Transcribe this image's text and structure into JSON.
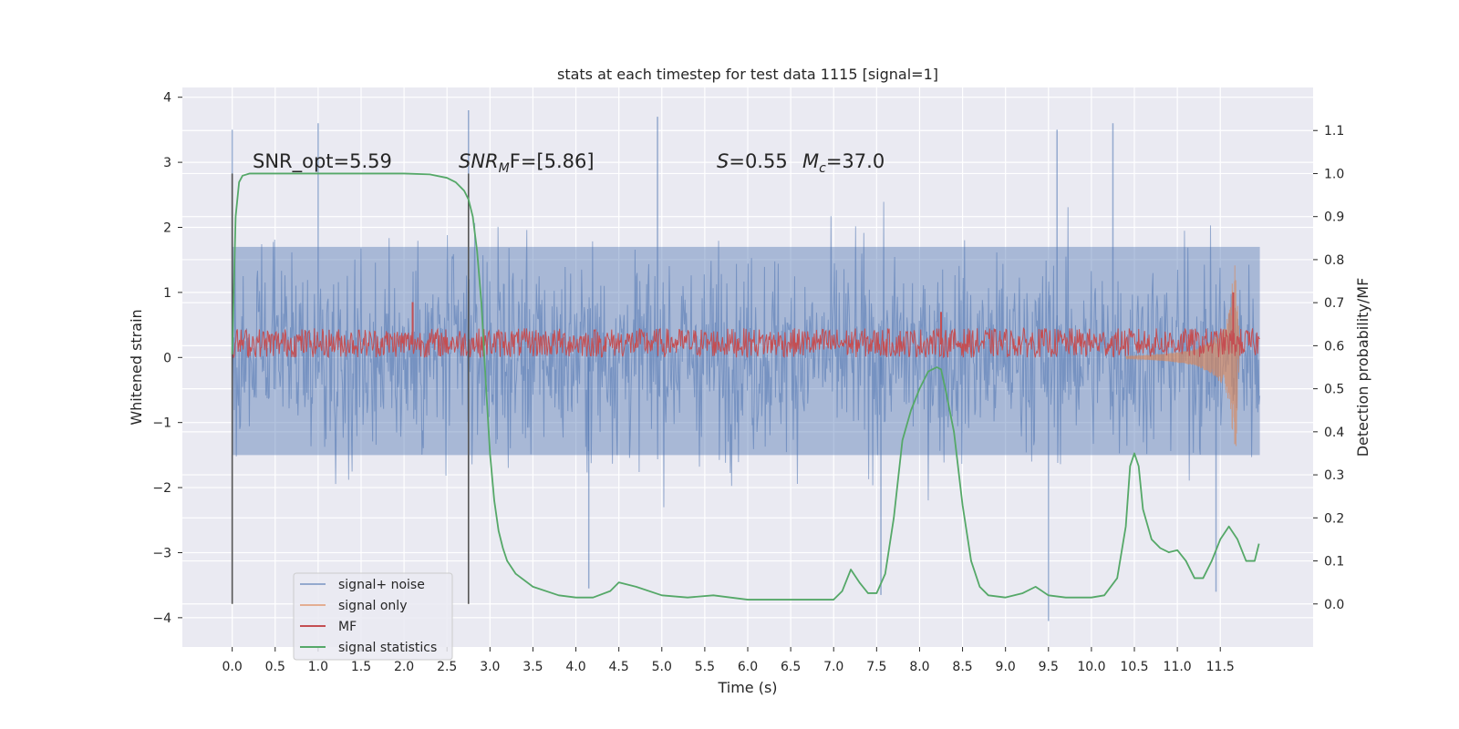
{
  "chart_data": {
    "type": "line",
    "title": "stats at each timestep for test data 1115 [signal=1]",
    "xlabel": "Time (s)",
    "ylabel": "Whitened strain",
    "y2label": "Detection probability/MF",
    "xlim": [
      -0.58,
      12.58
    ],
    "ylim": [
      -4.45,
      4.15
    ],
    "y2lim": [
      -0.1,
      1.2
    ],
    "xticks": [
      0.0,
      0.5,
      1.0,
      1.5,
      2.0,
      2.5,
      3.0,
      3.5,
      4.0,
      4.5,
      5.0,
      5.5,
      6.0,
      6.5,
      7.0,
      7.5,
      8.0,
      8.5,
      9.0,
      9.5,
      10.0,
      10.5,
      11.0,
      11.5
    ],
    "xtick_labels": [
      "0.0",
      "0.5",
      "1.0",
      "1.5",
      "2.0",
      "2.5",
      "3.0",
      "3.5",
      "4.0",
      "4.5",
      "5.0",
      "5.5",
      "6.0",
      "6.5",
      "7.0",
      "7.5",
      "8.0",
      "8.5",
      "9.0",
      "9.5",
      "10.0",
      "10.5",
      "11.0",
      "11.5"
    ],
    "yticks": [
      -4,
      -3,
      -2,
      -1,
      0,
      1,
      2,
      3,
      4
    ],
    "ytick_labels": [
      "−4",
      "−3",
      "−2",
      "−1",
      "0",
      "1",
      "2",
      "3",
      "4"
    ],
    "y2ticks": [
      0.0,
      0.1,
      0.2,
      0.3,
      0.4,
      0.5,
      0.6,
      0.7,
      0.8,
      0.9,
      1.0,
      1.1
    ],
    "y2tick_labels": [
      "0.0",
      "0.1",
      "0.2",
      "0.3",
      "0.4",
      "0.5",
      "0.6",
      "0.7",
      "0.8",
      "0.9",
      "1.0",
      "1.1"
    ],
    "grid": true,
    "legend_position": "lower-left",
    "legend": [
      {
        "label": "signal+ noise",
        "color": "#4c72b0"
      },
      {
        "label": "signal only",
        "color": "#dd8452"
      },
      {
        "label": "MF",
        "color": "#c44e52"
      },
      {
        "label": "signal statistics",
        "color": "#55a868"
      }
    ],
    "annotations": {
      "snr_opt": "SNR_opt=5.59",
      "snr_mf_main": "SNR",
      "snr_mf_sub": "M",
      "snr_mf_rest": "F=[5.86]",
      "s_sym": "S",
      "s_val": "=0.55",
      "mc_sym": "M",
      "mc_sub": "c",
      "mc_val": "=37.0"
    },
    "vertical_lines_x": [
      0.0,
      2.75
    ],
    "noise_envelope": {
      "x_range": [
        0.0,
        11.96
      ],
      "typical_band": [
        -1.5,
        1.7
      ],
      "peaks_high": [
        {
          "x": 0.0,
          "y": 3.5
        },
        {
          "x": 1.0,
          "y": 3.6
        },
        {
          "x": 2.75,
          "y": 3.8
        },
        {
          "x": 4.95,
          "y": 3.7
        },
        {
          "x": 9.6,
          "y": 3.5
        },
        {
          "x": 10.25,
          "y": 3.6
        }
      ],
      "peaks_low": [
        {
          "x": 4.15,
          "y": -3.55
        },
        {
          "x": 7.55,
          "y": -3.65
        },
        {
          "x": 9.5,
          "y": -4.05
        },
        {
          "x": 11.45,
          "y": -3.6
        }
      ]
    },
    "series": [
      {
        "name": "signal statistics",
        "axis": "right",
        "color": "#55a868",
        "x": [
          0.0,
          0.04,
          0.08,
          0.12,
          0.2,
          0.3,
          0.5,
          1.0,
          1.5,
          2.0,
          2.3,
          2.5,
          2.6,
          2.7,
          2.75,
          2.8,
          2.85,
          2.9,
          2.95,
          3.0,
          3.05,
          3.1,
          3.15,
          3.2,
          3.3,
          3.5,
          3.8,
          4.0,
          4.2,
          4.4,
          4.5,
          4.7,
          5.0,
          5.3,
          5.6,
          6.0,
          6.5,
          7.0,
          7.1,
          7.2,
          7.3,
          7.4,
          7.5,
          7.6,
          7.7,
          7.8,
          7.9,
          8.0,
          8.1,
          8.2,
          8.25,
          8.3,
          8.4,
          8.5,
          8.6,
          8.7,
          8.8,
          9.0,
          9.2,
          9.35,
          9.5,
          9.7,
          10.0,
          10.15,
          10.3,
          10.4,
          10.45,
          10.5,
          10.55,
          10.6,
          10.7,
          10.8,
          10.9,
          11.0,
          11.1,
          11.2,
          11.3,
          11.4,
          11.5,
          11.6,
          11.7,
          11.8,
          11.9,
          11.95
        ],
        "y": [
          0.58,
          0.9,
          0.98,
          0.995,
          1.0,
          1.0,
          1.0,
          1.0,
          1.0,
          1.0,
          0.998,
          0.99,
          0.98,
          0.96,
          0.94,
          0.9,
          0.82,
          0.7,
          0.52,
          0.35,
          0.24,
          0.17,
          0.13,
          0.1,
          0.07,
          0.04,
          0.02,
          0.015,
          0.015,
          0.03,
          0.05,
          0.04,
          0.02,
          0.015,
          0.02,
          0.01,
          0.01,
          0.01,
          0.03,
          0.08,
          0.05,
          0.025,
          0.025,
          0.07,
          0.2,
          0.38,
          0.45,
          0.5,
          0.54,
          0.55,
          0.545,
          0.5,
          0.4,
          0.23,
          0.1,
          0.04,
          0.02,
          0.015,
          0.025,
          0.04,
          0.02,
          0.015,
          0.015,
          0.02,
          0.06,
          0.18,
          0.32,
          0.35,
          0.32,
          0.22,
          0.15,
          0.13,
          0.12,
          0.125,
          0.1,
          0.06,
          0.06,
          0.1,
          0.15,
          0.18,
          0.15,
          0.1,
          0.1,
          0.14
        ]
      },
      {
        "name": "MF",
        "axis": "left",
        "color": "#c44e52",
        "x_range": [
          0.0,
          11.96
        ],
        "band": [
          0.0,
          0.45
        ],
        "spikes": [
          {
            "x": 2.1,
            "y": 0.85
          },
          {
            "x": 8.25,
            "y": 0.7
          },
          {
            "x": 11.65,
            "y": 1.0
          }
        ]
      },
      {
        "name": "signal only",
        "axis": "left",
        "color": "#dd8452",
        "x": [
          0.0,
          10.5,
          10.9,
          11.2,
          11.4,
          11.55,
          11.62,
          11.65,
          11.68,
          11.72
        ],
        "y_envelope": [
          0.0,
          0.02,
          0.06,
          0.12,
          0.25,
          0.45,
          0.8,
          1.35,
          -1.45,
          -0.3
        ]
      },
      {
        "name": "signal+ noise",
        "axis": "left",
        "color": "#4c72b0"
      }
    ]
  }
}
